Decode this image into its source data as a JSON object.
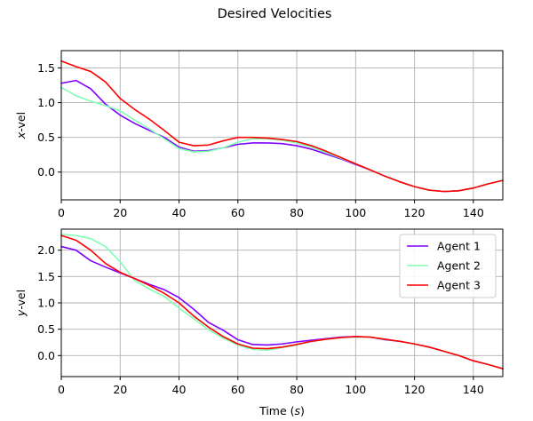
{
  "figure": {
    "title": "Desired Velocities"
  },
  "chart_data": [
    {
      "type": "line",
      "title": "",
      "xlabel": "",
      "ylabel": "x-vel",
      "ylabel_parts": [
        "x",
        "-vel"
      ],
      "xlim": [
        0,
        150
      ],
      "ylim": [
        -0.4,
        1.75
      ],
      "xticks": [
        0,
        20,
        40,
        60,
        80,
        100,
        120,
        140
      ],
      "yticks": [
        0.0,
        0.5,
        1.0,
        1.5
      ],
      "ytick_labels": [
        "0.0",
        "0.5",
        "1.0",
        "1.5"
      ],
      "grid": true,
      "legend": null,
      "x": [
        0,
        5,
        10,
        15,
        20,
        25,
        30,
        35,
        40,
        45,
        50,
        55,
        60,
        65,
        70,
        75,
        80,
        85,
        90,
        95,
        100,
        105,
        110,
        115,
        120,
        125,
        130,
        135,
        140,
        145,
        150
      ],
      "series": [
        {
          "name": "Agent 1",
          "color": "#7f00ff",
          "values": [
            1.28,
            1.32,
            1.2,
            0.98,
            0.82,
            0.7,
            0.6,
            0.5,
            0.36,
            0.3,
            0.31,
            0.35,
            0.4,
            0.42,
            0.42,
            0.41,
            0.38,
            0.33,
            0.26,
            0.19,
            0.11,
            0.03,
            -0.06,
            -0.14,
            -0.21,
            -0.26,
            -0.28,
            -0.27,
            -0.23,
            -0.17,
            -0.12
          ]
        },
        {
          "name": "Agent 2",
          "color": "#80ffb4",
          "values": [
            1.22,
            1.1,
            1.02,
            0.96,
            0.88,
            0.75,
            0.62,
            0.48,
            0.34,
            0.29,
            0.3,
            0.35,
            0.43,
            0.48,
            0.48,
            0.46,
            0.42,
            0.36,
            0.28,
            0.2,
            0.12,
            0.03,
            -0.06,
            -0.14,
            -0.21,
            -0.26,
            -0.28,
            -0.27,
            -0.23,
            -0.17,
            -0.12
          ]
        },
        {
          "name": "Agent 3",
          "color": "#ff0000",
          "values": [
            1.6,
            1.52,
            1.45,
            1.3,
            1.06,
            0.9,
            0.76,
            0.6,
            0.43,
            0.38,
            0.39,
            0.45,
            0.5,
            0.5,
            0.49,
            0.47,
            0.44,
            0.38,
            0.3,
            0.21,
            0.12,
            0.03,
            -0.06,
            -0.14,
            -0.21,
            -0.26,
            -0.28,
            -0.27,
            -0.23,
            -0.17,
            -0.12
          ]
        }
      ]
    },
    {
      "type": "line",
      "title": "",
      "xlabel": "Time (s)",
      "xlabel_parts": [
        "Time (",
        "s",
        ")"
      ],
      "ylabel": "y-vel",
      "ylabel_parts": [
        "y",
        "-vel"
      ],
      "xlim": [
        0,
        150
      ],
      "ylim": [
        -0.4,
        2.4
      ],
      "xticks": [
        0,
        20,
        40,
        60,
        80,
        100,
        120,
        140
      ],
      "yticks": [
        0.0,
        0.5,
        1.0,
        1.5,
        2.0
      ],
      "ytick_labels": [
        "0.0",
        "0.5",
        "1.0",
        "1.5",
        "2.0"
      ],
      "grid": true,
      "legend": "top-right",
      "x": [
        0,
        5,
        10,
        15,
        20,
        25,
        30,
        35,
        40,
        45,
        50,
        55,
        60,
        65,
        70,
        75,
        80,
        85,
        90,
        95,
        100,
        105,
        110,
        115,
        120,
        125,
        130,
        135,
        140,
        145,
        150
      ],
      "series": [
        {
          "name": "Agent 1",
          "color": "#7f00ff",
          "values": [
            2.07,
            2.0,
            1.8,
            1.68,
            1.57,
            1.46,
            1.35,
            1.25,
            1.1,
            0.88,
            0.63,
            0.48,
            0.3,
            0.21,
            0.2,
            0.22,
            0.26,
            0.29,
            0.32,
            0.35,
            0.36,
            0.35,
            0.3,
            0.27,
            0.22,
            0.16,
            0.08,
            0.0,
            -0.1,
            -0.17,
            -0.25
          ]
        },
        {
          "name": "Agent 2",
          "color": "#80ffb4",
          "values": [
            2.3,
            2.28,
            2.22,
            2.07,
            1.78,
            1.42,
            1.26,
            1.12,
            0.9,
            0.7,
            0.49,
            0.33,
            0.2,
            0.12,
            0.1,
            0.15,
            0.2,
            0.27,
            0.31,
            0.34,
            0.35,
            0.35,
            0.31,
            0.27,
            0.22,
            0.16,
            0.08,
            0.0,
            -0.1,
            -0.17,
            -0.25
          ]
        },
        {
          "name": "Agent 3",
          "color": "#ff0000",
          "values": [
            2.28,
            2.19,
            2.0,
            1.75,
            1.58,
            1.46,
            1.33,
            1.18,
            1.0,
            0.75,
            0.54,
            0.36,
            0.22,
            0.14,
            0.13,
            0.16,
            0.21,
            0.27,
            0.31,
            0.34,
            0.36,
            0.35,
            0.31,
            0.27,
            0.22,
            0.16,
            0.08,
            0.0,
            -0.1,
            -0.17,
            -0.25
          ]
        }
      ]
    }
  ]
}
